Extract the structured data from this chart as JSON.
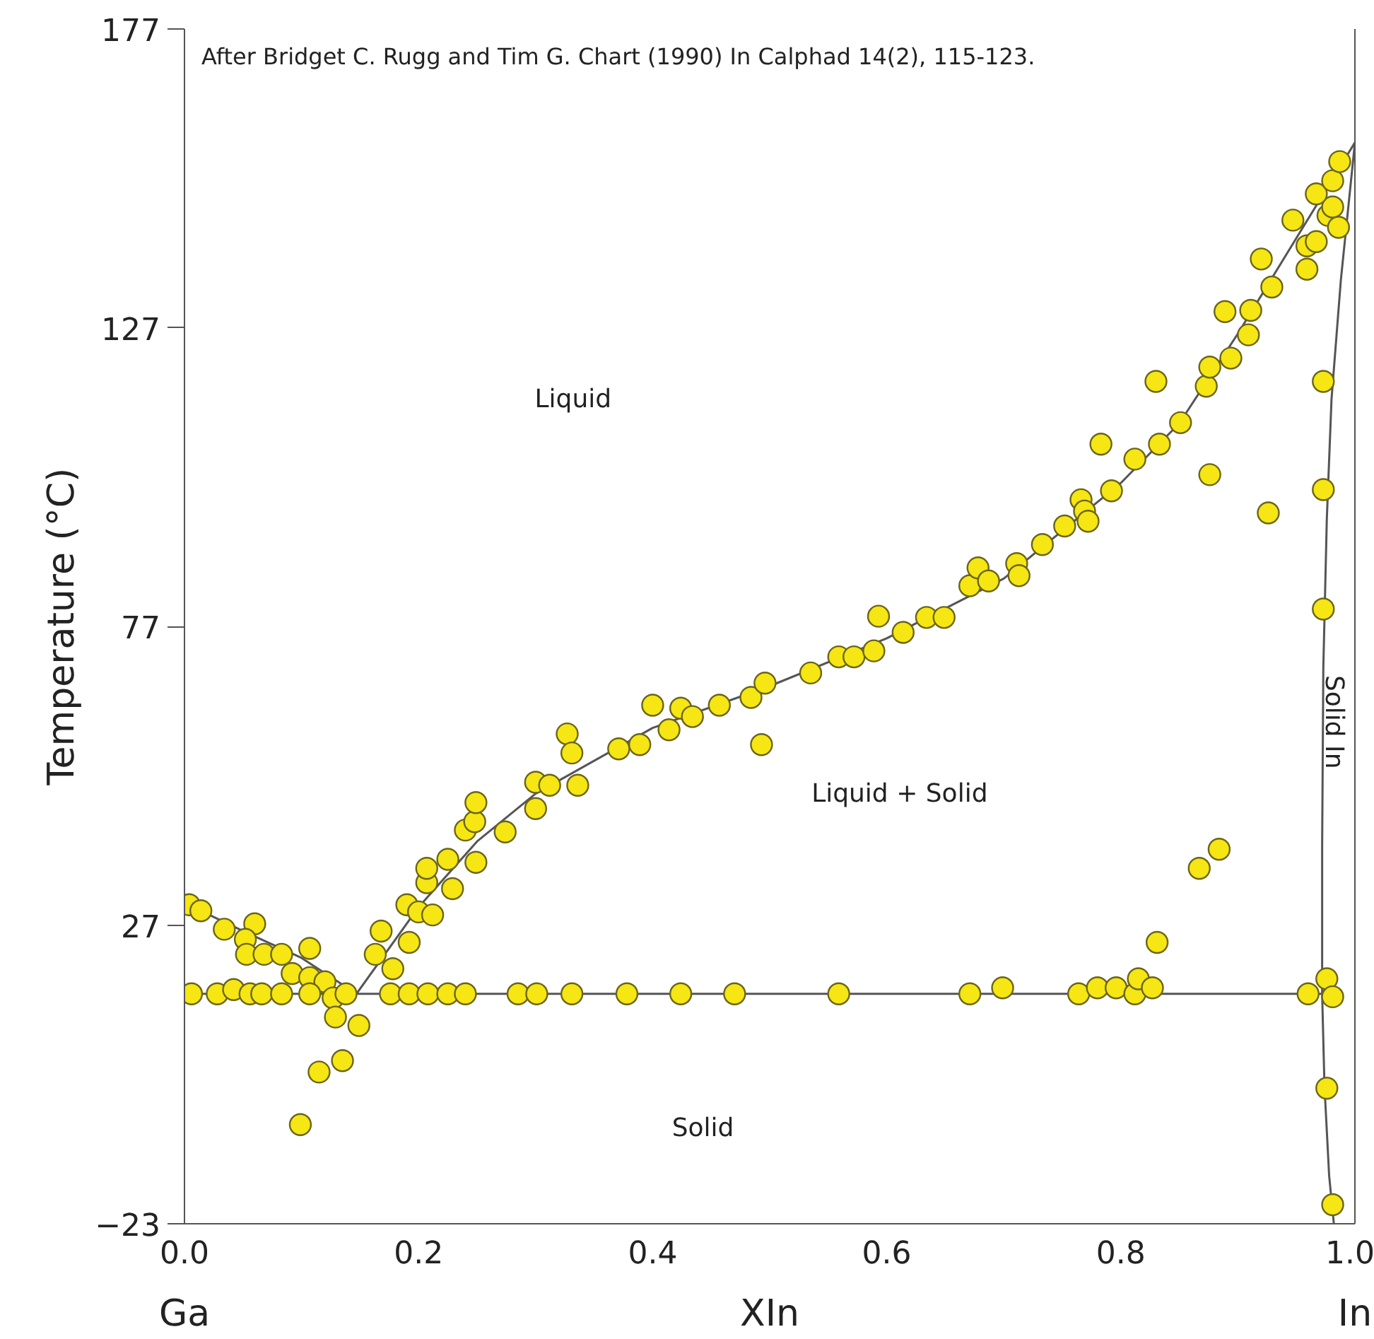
{
  "chart_data": {
    "type": "scatter",
    "xlabel": "XIn",
    "ylabel": "Temperature (°C)",
    "xlim": [
      0,
      1
    ],
    "ylim": [
      -23,
      177
    ],
    "xticks": [
      {
        "value": 0,
        "label": "0.0"
      },
      0.2,
      0.4,
      0.6,
      0.8,
      {
        "value": 1,
        "label": "1.0"
      }
    ],
    "yticks": [
      -23,
      27,
      77,
      127,
      177
    ],
    "grid": false,
    "marker": "circle",
    "annotations": [
      "After Bridget C. Rugg and Tim G. Chart (1990) In Calphad 14(2), 115-123.",
      "Liquid",
      "Liquid + Solid",
      "Solid",
      "Solid In",
      "Ga",
      "In"
    ],
    "series": [
      {
        "type": "line",
        "marker": "none",
        "color": "#555555",
        "x": [
          0,
          0.05,
          0.1,
          0.147,
          0.2,
          0.25,
          0.3,
          0.4,
          0.5,
          0.6,
          0.7,
          0.8,
          0.85,
          0.9,
          0.95,
          1.0
        ],
        "values": [
          30.7,
          26,
          21.5,
          15.5,
          30,
          41,
          49,
          60,
          67,
          75,
          85,
          101,
          111,
          126,
          142,
          158
        ]
      },
      {
        "type": "line",
        "marker": "none",
        "color": "#555555",
        "x": [
          0,
          0.972
        ],
        "values": [
          15.5,
          15.5
        ]
      },
      {
        "type": "line",
        "marker": "none",
        "color": "#555555",
        "x": [
          1.0,
          0.988,
          0.98,
          0.976,
          0.973,
          0.972,
          0.972,
          0.974,
          0.978,
          0.982
        ],
        "values": [
          158,
          135,
          115,
          95,
          70,
          40,
          15.5,
          0,
          -15,
          -23
        ]
      },
      {
        "color": "#f5e614",
        "x": [
          0.004,
          0.014,
          0.034,
          0.06,
          0.052,
          0.053,
          0.068,
          0.083,
          0.107,
          0.092,
          0.107,
          0.12,
          0.127,
          0.129,
          0.149,
          0.115,
          0.135,
          0.099,
          0.006,
          0.028,
          0.042,
          0.056,
          0.066,
          0.083,
          0.107,
          0.138,
          0.176,
          0.192,
          0.208,
          0.225,
          0.24,
          0.285,
          0.301,
          0.331,
          0.378,
          0.424,
          0.47,
          0.559,
          0.671,
          0.699,
          0.764,
          0.78,
          0.796,
          0.812,
          0.815,
          0.827,
          0.96,
          0.976,
          0.981,
          0.163,
          0.192,
          0.178,
          0.168,
          0.19,
          0.2,
          0.212,
          0.207,
          0.207,
          0.225,
          0.229,
          0.249,
          0.24,
          0.248,
          0.249,
          0.274,
          0.3,
          0.3,
          0.312,
          0.336,
          0.327,
          0.331,
          0.371,
          0.389,
          0.4,
          0.414,
          0.424,
          0.434,
          0.457,
          0.484,
          0.496,
          0.493,
          0.535,
          0.559,
          0.572,
          0.589,
          0.593,
          0.614,
          0.634,
          0.649,
          0.671,
          0.678,
          0.687,
          0.711,
          0.713,
          0.733,
          0.752,
          0.766,
          0.769,
          0.772,
          0.783,
          0.792,
          0.812,
          0.833,
          0.851,
          0.83,
          0.873,
          0.876,
          0.876,
          0.926,
          0.894,
          0.909,
          0.911,
          0.889,
          0.929,
          0.92,
          0.959,
          0.959,
          0.967,
          0.947,
          0.977,
          0.981,
          0.986,
          0.967,
          0.981,
          0.987,
          0.973,
          0.973,
          0.973,
          0.976,
          0.981,
          0.831,
          0.867,
          0.884
        ],
        "values": [
          30.4,
          29.4,
          26.3,
          27.2,
          24.6,
          22.1,
          22.1,
          22.1,
          23.1,
          18.9,
          18.2,
          17.5,
          14.8,
          11.6,
          10.2,
          2.4,
          4.3,
          -6.4,
          15.5,
          15.5,
          16.2,
          15.5,
          15.5,
          15.5,
          15.5,
          15.5,
          15.5,
          15.5,
          15.5,
          15.5,
          15.5,
          15.5,
          15.5,
          15.5,
          15.5,
          15.5,
          15.5,
          15.5,
          15.5,
          16.5,
          15.5,
          16.5,
          16.5,
          15.5,
          18,
          16.5,
          15.5,
          18,
          15,
          22.1,
          24.1,
          19.7,
          26.0,
          30.4,
          29.2,
          28.7,
          34.1,
          36.5,
          38.0,
          33.1,
          37.5,
          42.9,
          44.3,
          47.5,
          42.6,
          46.5,
          50.9,
          50.4,
          50.4,
          59.0,
          55.8,
          56.5,
          57.2,
          63.8,
          59.7,
          63.3,
          61.9,
          63.8,
          65.1,
          67.5,
          57.2,
          69.2,
          71.9,
          71.9,
          72.9,
          78.7,
          76.0,
          78.5,
          78.5,
          83.8,
          86.8,
          84.6,
          87.5,
          85.5,
          90.7,
          93.8,
          98.2,
          96.3,
          94.6,
          107.5,
          99.7,
          105.0,
          107.5,
          111.1,
          118.0,
          117.2,
          120.4,
          102.4,
          96.0,
          121.9,
          125.8,
          129.9,
          129.7,
          133.8,
          138.5,
          136.8,
          140.7,
          141.4,
          145.0,
          145.8,
          147.2,
          143.8,
          149.4,
          151.6,
          154.8,
          118.0,
          99.9,
          79.9,
          -0.3,
          -19.8,
          24.1,
          36.5,
          39.7
        ]
      }
    ]
  }
}
